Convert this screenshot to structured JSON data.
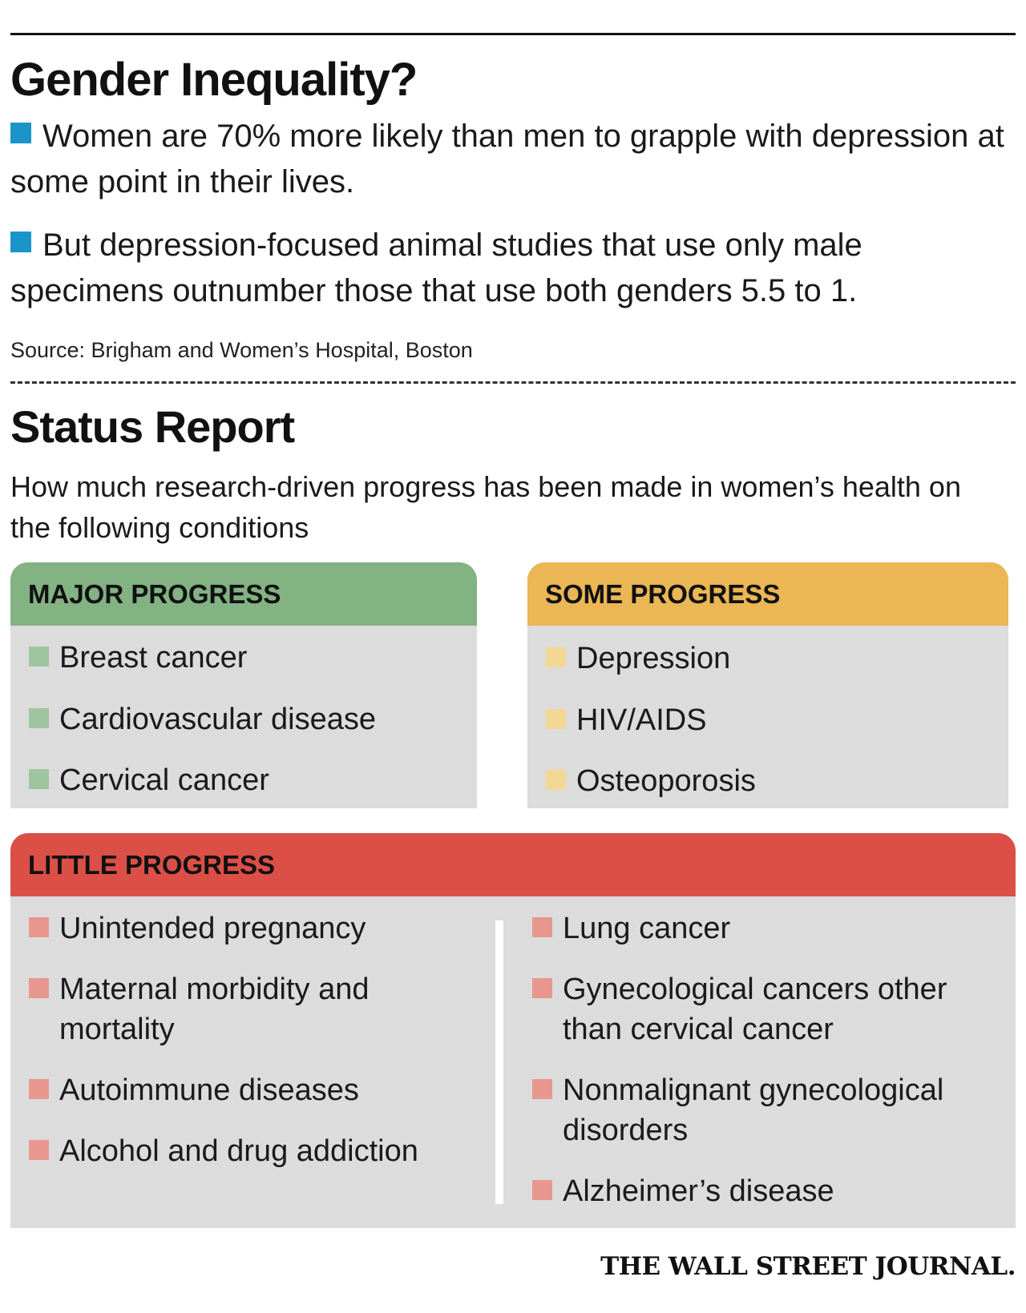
{
  "title": "Gender Inequality?",
  "bullets": [
    "Women are 70% more likely than men to grapple with depression at some point in their lives.",
    "But depression-focused animal studies that use only male specimens outnumber those that use both genders 5.5 to 1."
  ],
  "source": "Source: Brigham and Women’s Hospital, Boston",
  "status": {
    "title": "Status Report",
    "subtitle": "How much research-driven progress has been made in women’s health on the following conditions",
    "major": {
      "label": "MAJOR PROGRESS",
      "color": "#83b283",
      "items": [
        "Breast cancer",
        "Cardiovascular disease",
        "Cervical cancer"
      ]
    },
    "some": {
      "label": "SOME PROGRESS",
      "color": "#ebb654",
      "items": [
        "Depression",
        "HIV/AIDS",
        "Osteoporosis"
      ]
    },
    "little": {
      "label": "LITTLE PROGRESS",
      "color": "#dc4f47",
      "left_items": [
        "Unintended pregnancy",
        "Maternal morbidity and",
        "mortality",
        "Autoimmune diseases",
        "Alcohol and drug addiction"
      ],
      "right_items": [
        "Lung cancer",
        "Gynecological cancers other",
        "than cervical cancer",
        "Nonmalignant gynecological",
        "disorders",
        "Alzheimer’s disease"
      ]
    }
  },
  "footer": "THE WALL STREET JOURNAL."
}
